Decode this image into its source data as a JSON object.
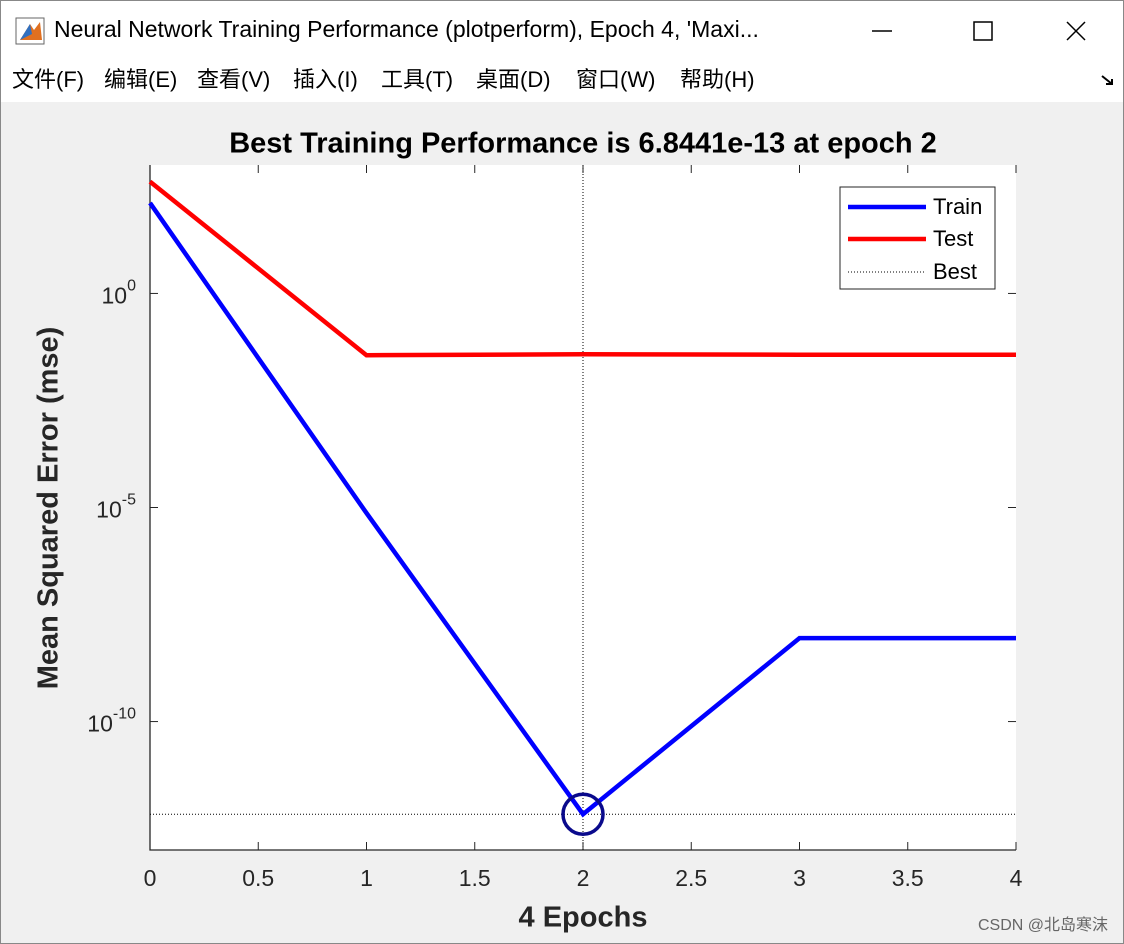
{
  "window": {
    "title": "Neural Network Training Performance (plotperform), Epoch 4, 'Maxi...",
    "menu": [
      "文件(F)",
      "编辑(E)",
      "查看(V)",
      "插入(I)",
      "工具(T)",
      "桌面(D)",
      "窗口(W)",
      "帮助(H)"
    ]
  },
  "chart_data": {
    "type": "line",
    "title": "Best Training Performance is 6.8441e-13 at epoch 2",
    "xlabel": "4 Epochs",
    "ylabel": "Mean Squared Error  (mse)",
    "x": [
      0,
      1,
      2,
      3,
      4
    ],
    "series": [
      {
        "name": "Train",
        "color": "#0000ff",
        "values": [
          130,
          7.4e-06,
          6.8441e-13,
          8.9e-09,
          8.9e-09
        ]
      },
      {
        "name": "Test",
        "color": "#ff0000",
        "values": [
          410,
          0.036,
          0.038,
          0.037,
          0.037
        ]
      }
    ],
    "best": {
      "name": "Best",
      "epoch": 2,
      "value": 6.8441e-13,
      "color": "#000000",
      "marker_color": "#0a0a8c"
    },
    "xlim": [
      0,
      4
    ],
    "xticks": [
      0,
      0.5,
      1,
      1.5,
      2,
      2.5,
      3,
      3.5,
      4
    ],
    "ylim": [
      1e-13,
      1000
    ],
    "log_y": true,
    "yticks": [
      {
        "value": 1e-10,
        "label": "10^-10"
      },
      {
        "value": 1e-05,
        "label": "10^-5"
      },
      {
        "value": 1,
        "label": "10^0"
      }
    ],
    "legend": "northeast"
  },
  "watermark": "CSDN @北岛寒沫"
}
